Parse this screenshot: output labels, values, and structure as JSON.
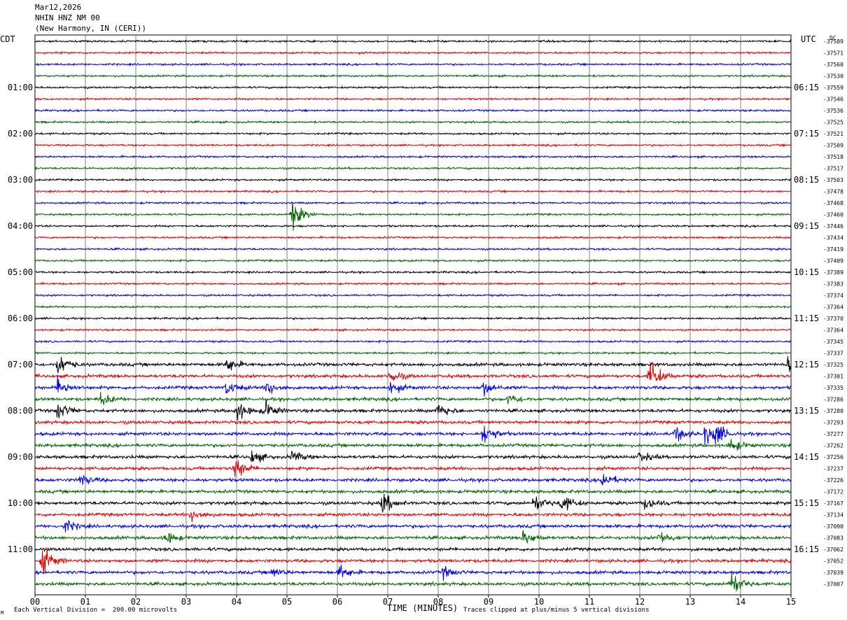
{
  "header": {
    "date": "Mar12,2026",
    "station": "NHIN HNZ NM 00",
    "location": "(New Harmony, IN (CERI))"
  },
  "axis": {
    "left_zone": "CDT",
    "right_zone": "UTC",
    "right_unit": "DC",
    "xlabel": "TIME (MINUTES)",
    "footer_left": "Each Vertical Division =  200.00 microvolts",
    "footer_right": "Traces clipped at plus/minus 5 vertical divisions",
    "corner_mark": "M"
  },
  "chart_data": {
    "type": "line",
    "title": "",
    "xlabel": "TIME (MINUTES)",
    "xlim": [
      0,
      15
    ],
    "x_ticks": [
      "00",
      "01",
      "02",
      "03",
      "04",
      "05",
      "06",
      "07",
      "08",
      "09",
      "10",
      "11",
      "12",
      "13",
      "14",
      "15"
    ],
    "left_hour_labels": [
      "01:00",
      "02:00",
      "03:00",
      "04:00",
      "05:00",
      "06:00",
      "07:00",
      "08:00",
      "09:00",
      "10:00",
      "11:00"
    ],
    "right_hour_labels": [
      "06:15",
      "07:15",
      "08:15",
      "09:15",
      "10:15",
      "11:15",
      "12:15",
      "13:15",
      "14:15",
      "15:15",
      "16:15"
    ],
    "trace_colors": [
      "#000000",
      "#e00000",
      "#0000e0",
      "#006400"
    ],
    "dc_offsets": [
      -37589,
      -37571,
      -37560,
      -37530,
      -37559,
      -37546,
      -37536,
      -37525,
      -37521,
      -37509,
      -37518,
      -37517,
      -37503,
      -37478,
      -37468,
      -37460,
      -37446,
      -37434,
      -37419,
      -37409,
      -37389,
      -37383,
      -37374,
      -37364,
      -37370,
      -37364,
      -37345,
      -37337,
      -37325,
      -37301,
      -37335,
      -37286,
      -37280,
      -37293,
      -37277,
      -37262,
      -37256,
      -37237,
      -37226,
      -37172,
      -37167,
      -37134,
      -37090,
      -37083,
      -37062,
      -37052,
      -37039,
      -37007
    ],
    "grid": true,
    "legend": "none"
  }
}
